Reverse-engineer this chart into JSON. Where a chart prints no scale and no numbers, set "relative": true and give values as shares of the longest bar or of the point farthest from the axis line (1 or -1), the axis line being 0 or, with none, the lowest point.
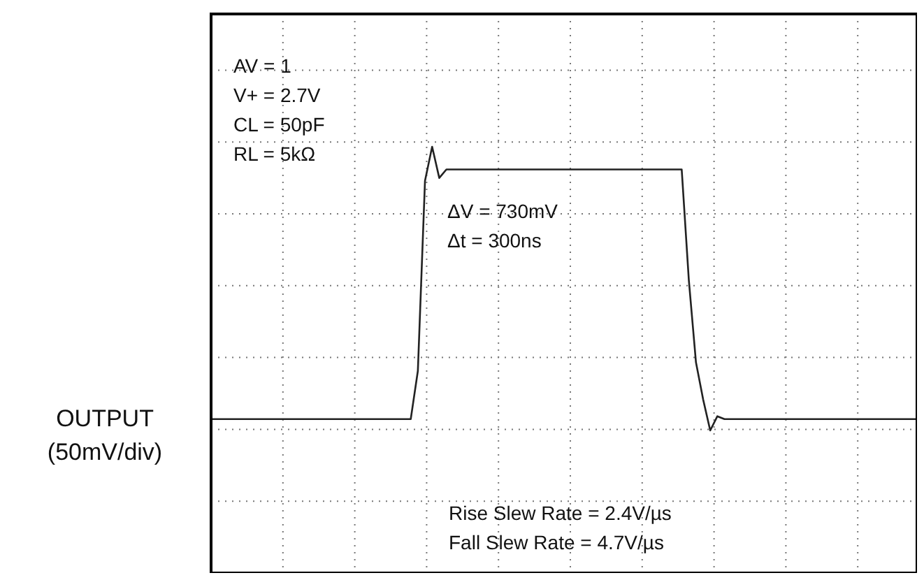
{
  "chart_data": {
    "type": "line",
    "relative": true,
    "ylabel": "OUTPUT (50mV/div)",
    "categories": [
      null,
      null,
      null,
      null,
      null,
      null,
      null,
      null,
      null,
      null,
      null,
      null,
      null,
      null,
      null,
      null,
      null,
      null,
      null,
      null,
      null,
      null,
      null,
      null,
      null,
      null,
      null,
      null,
      null,
      null,
      null,
      null,
      null,
      null,
      null,
      null,
      null,
      null,
      null,
      null,
      null,
      null,
      null,
      null,
      null,
      null,
      null,
      null,
      null,
      null,
      null,
      null,
      null,
      null,
      null,
      null,
      null,
      null,
      null,
      null,
      null,
      null,
      null,
      null,
      null,
      null,
      null,
      null,
      null,
      null,
      null,
      null,
      null,
      null,
      null,
      null,
      null,
      null,
      null,
      null,
      null,
      null,
      null,
      null,
      null,
      null,
      null,
      null,
      null,
      null,
      null,
      null,
      null,
      null,
      null,
      null,
      null,
      null,
      null,
      null
    ],
    "series": [
      {
        "color": "#222222",
        "values": [
          0.04,
          0.04,
          0.04,
          0.04,
          0.04,
          0.04,
          0.04,
          0.04,
          0.04,
          0.04,
          0.04,
          0.04,
          0.04,
          0.04,
          0.04,
          0.04,
          0.04,
          0.04,
          0.04,
          0.04,
          0.04,
          0.04,
          0.04,
          0.04,
          0.04,
          0.04,
          0.04,
          0.04,
          0.04,
          0.21,
          0.88,
          1.0,
          0.89,
          0.92,
          0.92,
          0.92,
          0.92,
          0.92,
          0.92,
          0.92,
          0.92,
          0.92,
          0.92,
          0.92,
          0.92,
          0.92,
          0.92,
          0.92,
          0.92,
          0.92,
          0.92,
          0.92,
          0.92,
          0.92,
          0.92,
          0.92,
          0.92,
          0.92,
          0.92,
          0.92,
          0.92,
          0.92,
          0.92,
          0.92,
          0.92,
          0.92,
          0.92,
          0.53,
          0.24,
          0.11,
          0.0,
          0.05,
          0.04,
          0.04,
          0.04,
          0.04,
          0.04,
          0.04,
          0.04,
          0.04,
          0.04,
          0.04,
          0.04,
          0.04,
          0.04,
          0.04,
          0.04,
          0.04,
          0.04,
          0.04,
          0.04,
          0.04,
          0.04,
          0.04,
          0.04,
          0.04,
          0.04,
          0.04,
          0.04,
          0.04
        ]
      }
    ],
    "annotations": [
      "AV = 1",
      "V+ = 2.7V",
      "CL = 50pF",
      "RL = 5kΩ",
      "ΔV = 730mV",
      "Δt = 300ns",
      "Rise Slew Rate = 2.4V/µs",
      "Fall Slew Rate = 4.7V/µs"
    ],
    "grid": true,
    "line_style": "solid",
    "marker": "none"
  }
}
